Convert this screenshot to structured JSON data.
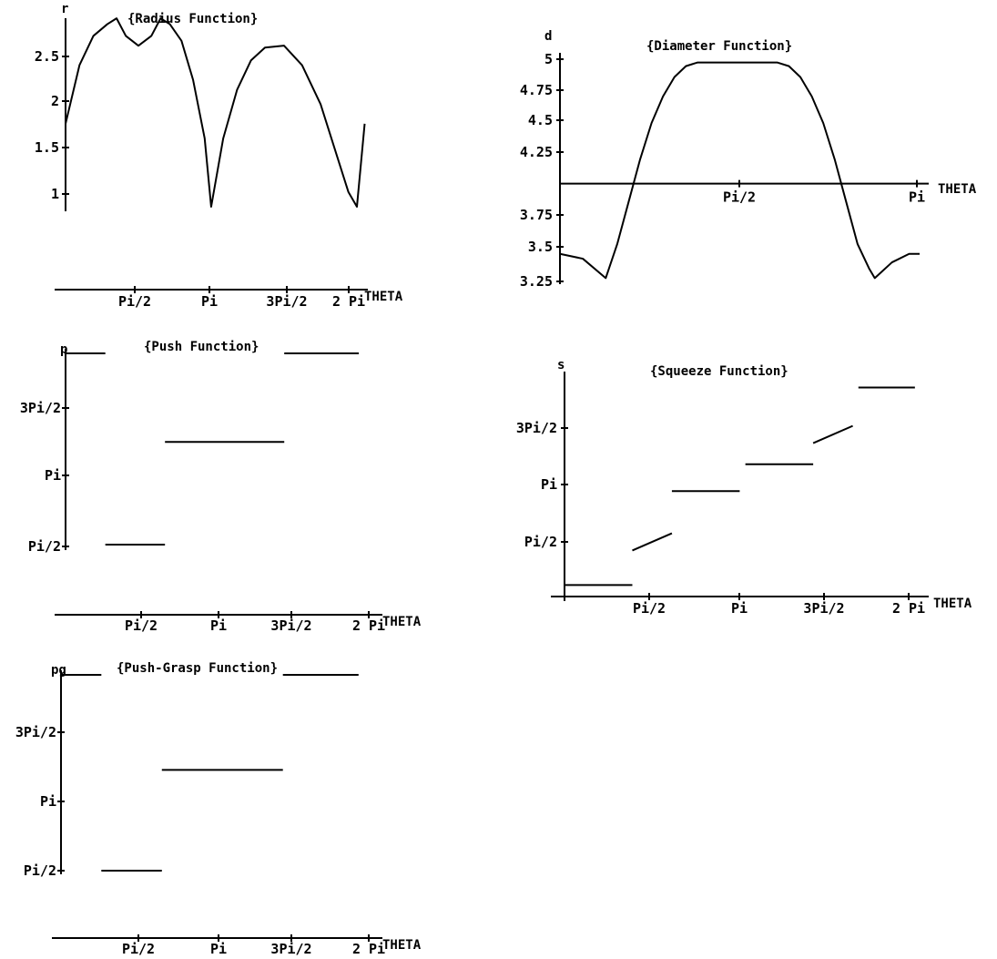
{
  "chart_data": [
    {
      "type": "line",
      "title": "{Radius Function}",
      "ylabel": "r",
      "xlabel": "THETA",
      "x_ticks": [
        "Pi/2",
        "Pi",
        "3Pi/2",
        "2 Pi"
      ],
      "y_ticks": [
        "2.5",
        "2",
        "1.5",
        "1"
      ],
      "xlim": [
        0,
        6.283
      ],
      "ylim": [
        0.85,
        2.8
      ],
      "series": [
        {
          "x": [
            0,
            0.3,
            0.6,
            0.9,
            1.1,
            1.3,
            1.571,
            1.85,
            2.05,
            2.25,
            2.5,
            2.75,
            3.0,
            3.14,
            3.4,
            3.7,
            4.0,
            4.3,
            4.712,
            5.1,
            5.5,
            5.9,
            6.1,
            6.283,
            6.45
          ],
          "y": [
            1.7,
            2.3,
            2.6,
            2.72,
            2.78,
            2.6,
            2.5,
            2.6,
            2.78,
            2.72,
            2.55,
            2.15,
            1.55,
            0.85,
            1.55,
            2.05,
            2.35,
            2.48,
            2.5,
            2.3,
            1.9,
            1.3,
            1.0,
            0.85,
            1.7
          ]
        }
      ]
    },
    {
      "type": "line",
      "title": "{Diameter Function}",
      "ylabel": "d",
      "xlabel": "THETA",
      "x_ticks": [
        "Pi/2",
        "Pi"
      ],
      "y_ticks": [
        "5",
        "4.75",
        "4.5",
        "4.25",
        "3.75",
        "3.5",
        "3.25"
      ],
      "xlim": [
        0,
        3.1416
      ],
      "ylim": [
        3.2,
        5.05
      ],
      "axis_cross_y": 4.0,
      "series": [
        {
          "x": [
            0,
            0.2,
            0.4,
            0.5,
            0.6,
            0.7,
            0.8,
            0.9,
            1.0,
            1.1,
            1.2,
            1.3,
            1.571,
            1.9,
            2.0,
            2.1,
            2.2,
            2.3,
            2.4,
            2.5,
            2.6,
            2.7,
            2.75,
            2.9,
            3.05,
            3.1416
          ],
          "y": [
            3.42,
            3.38,
            3.22,
            3.5,
            3.85,
            4.2,
            4.5,
            4.72,
            4.88,
            4.97,
            5.0,
            5.0,
            5.0,
            5.0,
            4.97,
            4.88,
            4.72,
            4.5,
            4.2,
            3.85,
            3.5,
            3.3,
            3.22,
            3.35,
            3.42,
            3.42
          ]
        }
      ]
    },
    {
      "type": "line",
      "title": "{Push Function}",
      "ylabel": "p",
      "xlabel": "THETA",
      "x_ticks": [
        "Pi/2",
        "Pi",
        "3Pi/2",
        "2 Pi"
      ],
      "y_ticks": [
        "3Pi/2",
        "Pi",
        "Pi/2"
      ],
      "xlim": [
        0,
        6.283
      ],
      "ylim": [
        1.571,
        6.0
      ],
      "series": [
        {
          "x": [
            0,
            0.8
          ],
          "y": [
            6.0,
            6.0
          ]
        },
        {
          "x": [
            0.8,
            2.0
          ],
          "y": [
            1.571,
            1.571
          ]
        },
        {
          "x": [
            2.0,
            4.4
          ],
          "y": [
            3.95,
            3.95
          ]
        },
        {
          "x": [
            4.4,
            5.9
          ],
          "y": [
            6.0,
            6.0
          ]
        }
      ]
    },
    {
      "type": "line",
      "title": "{Squeeze Function}",
      "ylabel": "s",
      "xlabel": "THETA",
      "x_ticks": [
        "Pi/2",
        "Pi",
        "3Pi/2",
        "2 Pi"
      ],
      "y_ticks": [
        "3Pi/2",
        "Pi",
        "Pi/2"
      ],
      "xlim": [
        0,
        6.283
      ],
      "ylim": [
        0,
        5.7
      ],
      "series": [
        {
          "x": [
            0,
            1.2
          ],
          "y": [
            0.3,
            0.3
          ]
        },
        {
          "x": [
            1.2,
            1.9
          ],
          "y": [
            1.2,
            1.65
          ]
        },
        {
          "x": [
            1.9,
            3.1
          ],
          "y": [
            2.75,
            2.75
          ]
        },
        {
          "x": [
            3.2,
            4.4
          ],
          "y": [
            3.45,
            3.45
          ]
        },
        {
          "x": [
            4.4,
            5.1
          ],
          "y": [
            4.0,
            4.45
          ]
        },
        {
          "x": [
            5.2,
            6.2
          ],
          "y": [
            5.45,
            5.45
          ]
        }
      ]
    },
    {
      "type": "line",
      "title": "{Push-Grasp Function}",
      "ylabel": "pg",
      "xlabel": "THETA",
      "x_ticks": [
        "Pi/2",
        "Pi",
        "3Pi/2",
        "2 Pi"
      ],
      "y_ticks": [
        "3Pi/2",
        "Pi",
        "Pi/2"
      ],
      "xlim": [
        0,
        6.283
      ],
      "ylim": [
        1.571,
        6.0
      ],
      "series": [
        {
          "x": [
            0,
            0.8
          ],
          "y": [
            6.0,
            6.0
          ]
        },
        {
          "x": [
            0.8,
            2.0
          ],
          "y": [
            1.571,
            1.571
          ]
        },
        {
          "x": [
            2.0,
            4.4
          ],
          "y": [
            3.85,
            3.85
          ]
        },
        {
          "x": [
            4.4,
            5.9
          ],
          "y": [
            6.0,
            6.0
          ]
        }
      ]
    }
  ]
}
